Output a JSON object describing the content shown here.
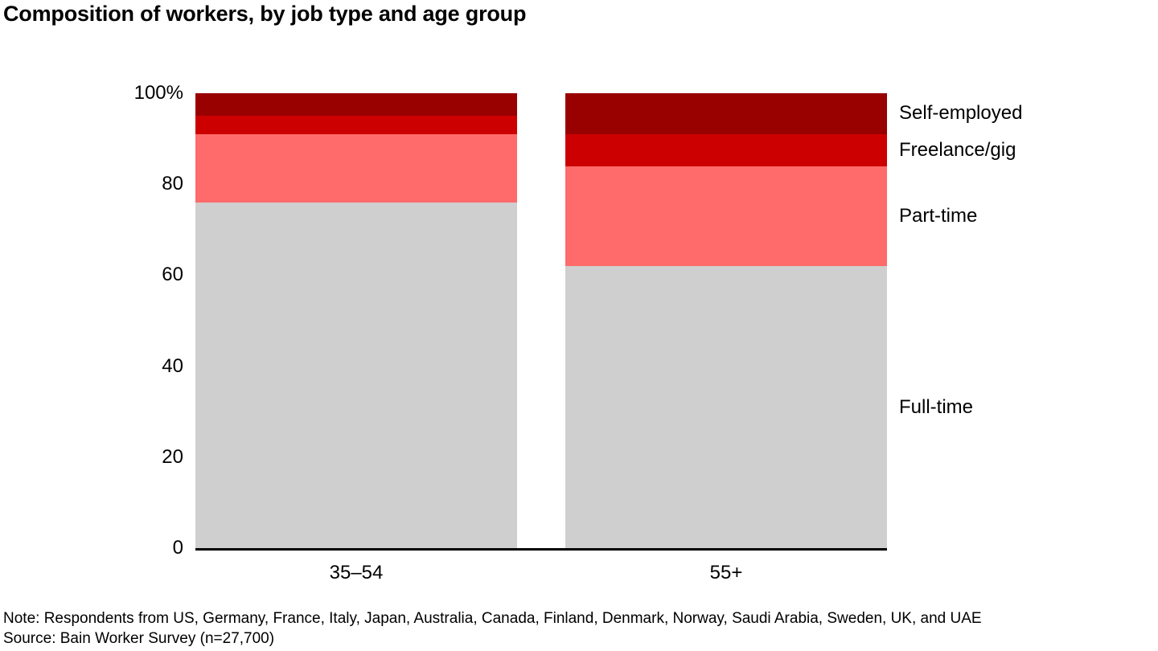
{
  "title": "Composition of workers, by job type and age group",
  "note": "Note: Respondents from US, Germany, France, Italy, Japan, Australia, Canada, Finland, Denmark, Norway, Saudi Arabia, Sweden, UK, and UAE",
  "source": "Source: Bain Worker Survey (n=27,700)",
  "colors": {
    "full_time": "#CFCFCF",
    "part_time": "#FF6A6A",
    "freelance_gig": "#CC0000",
    "self_employed": "#990000",
    "axis": "#000000",
    "text": "#000000",
    "background": "#FFFFFF"
  },
  "chart_data": {
    "type": "bar",
    "stacked": true,
    "orientation": "vertical",
    "title": "Composition of workers, by job type and age group",
    "categories": [
      "35–54",
      "55+"
    ],
    "series": [
      {
        "name": "Full-time",
        "values": [
          76,
          62
        ],
        "color": "#CFCFCF"
      },
      {
        "name": "Part-time",
        "values": [
          15,
          22
        ],
        "color": "#FF6A6A"
      },
      {
        "name": "Freelance/gig",
        "values": [
          4,
          7
        ],
        "color": "#CC0000"
      },
      {
        "name": "Self-employed",
        "values": [
          5,
          9
        ],
        "color": "#990000"
      }
    ],
    "xlabel": "",
    "ylabel": "",
    "ylim": [
      0,
      100
    ],
    "yticks": [
      {
        "value": 100,
        "label": "100%"
      },
      {
        "value": 80,
        "label": "80"
      },
      {
        "value": 60,
        "label": "60"
      },
      {
        "value": 40,
        "label": "40"
      },
      {
        "value": 20,
        "label": "20"
      },
      {
        "value": 0,
        "label": "0"
      }
    ],
    "grid": false,
    "legend_position": "right-of-bars, labels aligned to 55+ segment midpoints"
  }
}
